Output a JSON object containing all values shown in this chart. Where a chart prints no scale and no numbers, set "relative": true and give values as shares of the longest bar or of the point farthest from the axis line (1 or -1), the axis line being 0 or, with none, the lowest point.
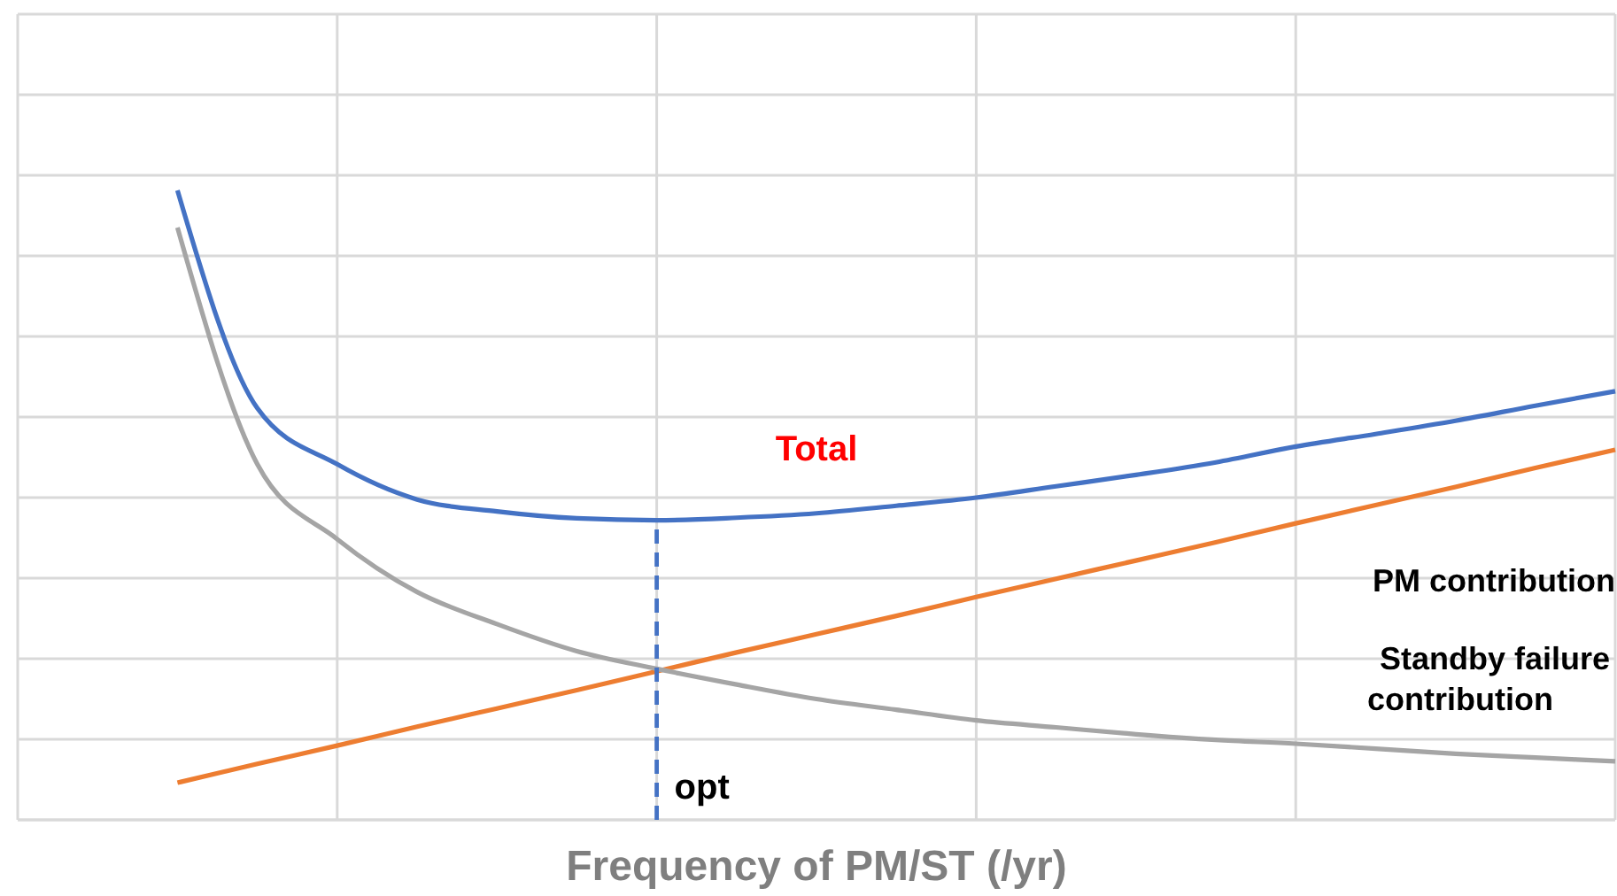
{
  "chart_data": {
    "type": "line",
    "relative": true,
    "xlabel": "Frequency of PM/ST (/yr)",
    "grid": true,
    "line_style": "solid",
    "annotations": [
      "opt"
    ],
    "categories": [
      null,
      null,
      null,
      null,
      null,
      null,
      null,
      null,
      null,
      null,
      null,
      null,
      null,
      null,
      null,
      null,
      null,
      null,
      null,
      null,
      null
    ],
    "series": [
      {
        "name": "Total",
        "color": "#4472c4",
        "values": [
          null,
          null,
          1,
          0.654,
          0.565,
          0.509,
          0.49,
          0.479,
          0.476,
          0.48,
          0.487,
          0.499,
          0.512,
          0.53,
          0.548,
          0.568,
          0.593,
          0.613,
          0.634,
          0.658,
          0.681
        ]
      },
      {
        "name": "PM contribution",
        "color": "#ed7d31",
        "values": [
          null,
          null,
          0.059,
          0.089,
          0.118,
          0.148,
          0.177,
          0.206,
          0.236,
          0.266,
          0.295,
          0.324,
          0.354,
          0.383,
          0.412,
          0.441,
          0.471,
          0.5,
          0.529,
          0.559,
          0.588
        ]
      },
      {
        "name": "Standby failure contribution",
        "color": "#a5a5a5",
        "values": [
          null,
          null,
          0.941,
          0.565,
          0.446,
          0.362,
          0.311,
          0.268,
          0.24,
          0.215,
          0.192,
          0.175,
          0.158,
          0.147,
          0.136,
          0.127,
          0.121,
          0.113,
          0.105,
          0.099,
          0.093
        ]
      }
    ]
  }
}
